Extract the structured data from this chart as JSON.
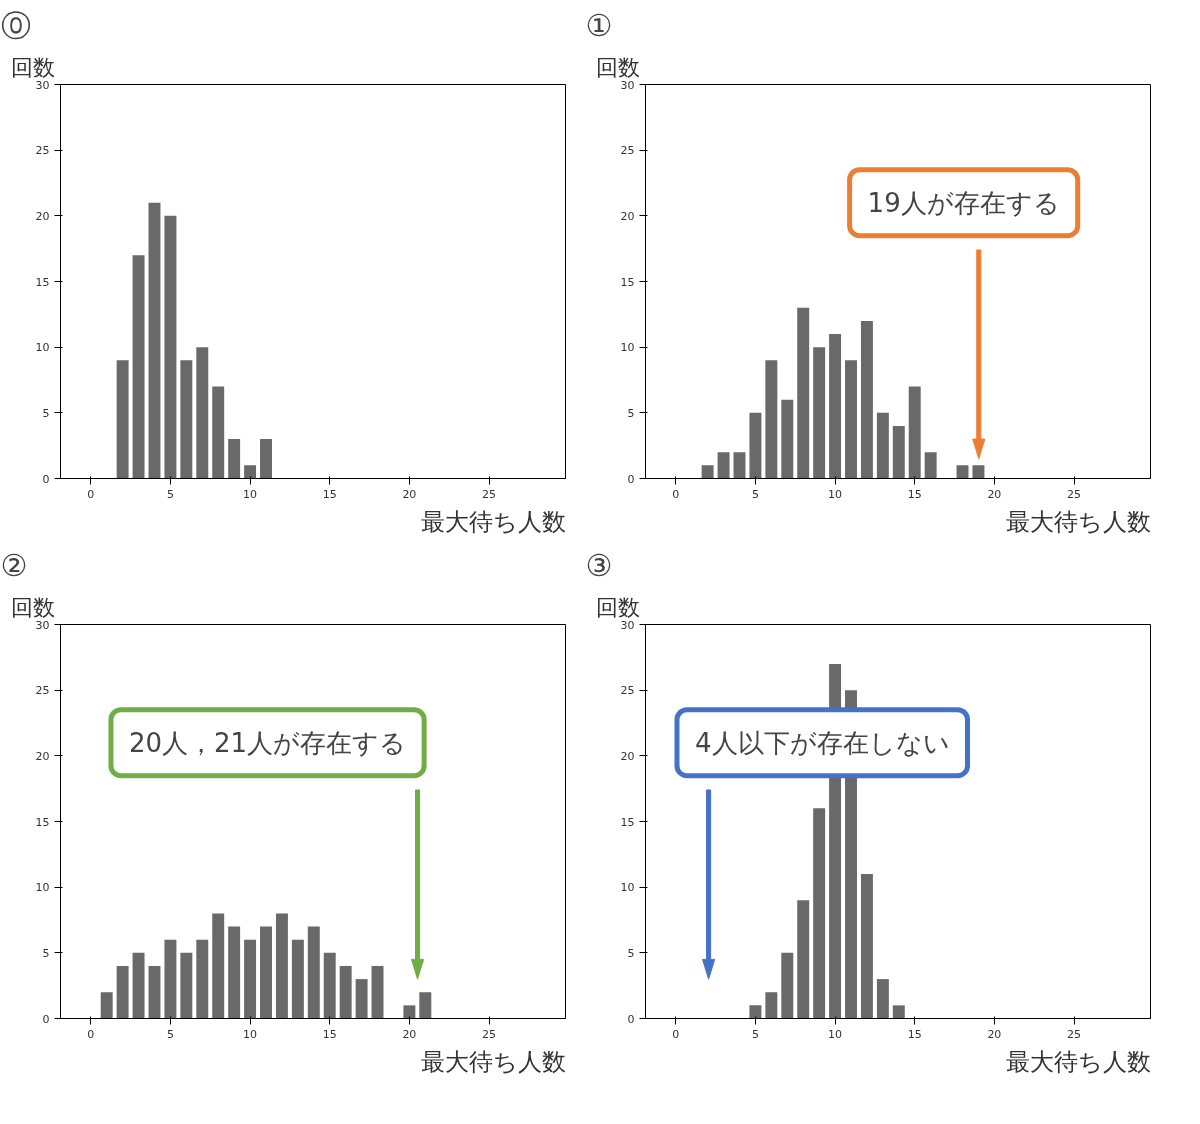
{
  "chart_data": [
    {
      "type": "bar",
      "title": "⓪",
      "ylabel": "回数",
      "xlabel": "最大待ち人数",
      "xlim": [
        -1.9,
        29.8
      ],
      "xticks": [
        0,
        5,
        10,
        15,
        20,
        25
      ],
      "ylim": [
        0,
        30
      ],
      "yticks": [
        0,
        5,
        10,
        15,
        20,
        25,
        30
      ],
      "grid": false,
      "x": [
        2,
        3,
        4,
        5,
        6,
        7,
        8,
        9,
        10,
        11
      ],
      "series": [
        {
          "color": "#696969",
          "values": [
            9,
            17,
            21,
            20,
            9,
            10,
            7,
            3,
            1,
            3
          ]
        }
      ]
    },
    {
      "type": "bar",
      "title": "①",
      "ylabel": "回数",
      "xlabel": "最大待ち人数",
      "xlim": [
        -1.9,
        29.8
      ],
      "xticks": [
        0,
        5,
        10,
        15,
        20,
        25
      ],
      "ylim": [
        0,
        30
      ],
      "yticks": [
        0,
        5,
        10,
        15,
        20,
        25,
        30
      ],
      "grid": false,
      "x": [
        2,
        3,
        4,
        5,
        6,
        7,
        8,
        9,
        10,
        11,
        12,
        13,
        14,
        15,
        16,
        18,
        19
      ],
      "series": [
        {
          "color": "#696969",
          "values": [
            1,
            2,
            2,
            5,
            9,
            6,
            13,
            10,
            11,
            9,
            12,
            5,
            4,
            7,
            2,
            1,
            1
          ]
        }
      ],
      "annotations": [
        "19人が存在する"
      ]
    },
    {
      "type": "bar",
      "title": "②",
      "ylabel": "回数",
      "xlabel": "最大待ち人数",
      "xlim": [
        -1.9,
        29.8
      ],
      "xticks": [
        0,
        5,
        10,
        15,
        20,
        25
      ],
      "ylim": [
        0,
        30
      ],
      "yticks": [
        0,
        5,
        10,
        15,
        20,
        25,
        30
      ],
      "grid": false,
      "x": [
        1,
        2,
        3,
        4,
        5,
        6,
        7,
        8,
        9,
        10,
        11,
        12,
        13,
        14,
        15,
        16,
        17,
        18,
        20,
        21
      ],
      "series": [
        {
          "color": "#696969",
          "values": [
            2,
            4,
            5,
            4,
            6,
            5,
            6,
            8,
            7,
            6,
            7,
            8,
            6,
            7,
            5,
            4,
            3,
            4,
            1,
            2
          ]
        }
      ],
      "annotations": [
        "20人，21人が存在する"
      ]
    },
    {
      "type": "bar",
      "title": "③",
      "ylabel": "回数",
      "xlabel": "最大待ち人数",
      "xlim": [
        -1.9,
        29.8
      ],
      "xticks": [
        0,
        5,
        10,
        15,
        20,
        25
      ],
      "ylim": [
        0,
        30
      ],
      "yticks": [
        0,
        5,
        10,
        15,
        20,
        25,
        30
      ],
      "grid": false,
      "x": [
        5,
        6,
        7,
        8,
        9,
        10,
        11,
        12,
        13,
        14
      ],
      "series": [
        {
          "color": "#696969",
          "values": [
            1,
            2,
            5,
            9,
            16,
            27,
            25,
            11,
            3,
            1
          ]
        }
      ],
      "annotations": [
        "4人以下が存在しない"
      ]
    }
  ]
}
